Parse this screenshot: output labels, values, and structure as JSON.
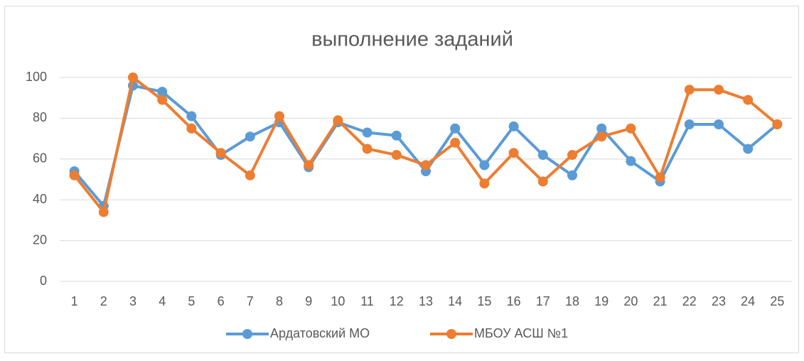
{
  "chart_data": {
    "type": "line",
    "title": "выполнение заданий",
    "categories": [
      "1",
      "2",
      "3",
      "4",
      "5",
      "6",
      "7",
      "8",
      "9",
      "10",
      "11",
      "12",
      "13",
      "14",
      "15",
      "16",
      "17",
      "18",
      "19",
      "20",
      "21",
      "22",
      "23",
      "24",
      "25"
    ],
    "series": [
      {
        "name": "Ардатовский МО",
        "color": "#5b9bd5",
        "values": [
          54,
          37,
          96,
          93,
          81,
          62,
          71,
          78,
          56,
          78,
          73,
          71.5,
          54,
          75,
          57,
          76,
          62,
          52,
          75,
          59,
          49,
          77,
          77,
          65,
          77
        ]
      },
      {
        "name": "МБОУ АСШ №1",
        "color": "#ed7d31",
        "values": [
          52,
          34,
          100,
          89,
          75,
          63,
          52,
          81,
          57,
          79,
          65,
          62,
          57,
          68,
          48,
          63,
          49,
          62,
          71,
          75,
          51,
          94,
          94,
          89,
          77
        ]
      }
    ],
    "ylim": [
      0,
      100
    ],
    "yticks": [
      0,
      20,
      40,
      60,
      80,
      100
    ],
    "grid": true,
    "legend": "bottom"
  }
}
